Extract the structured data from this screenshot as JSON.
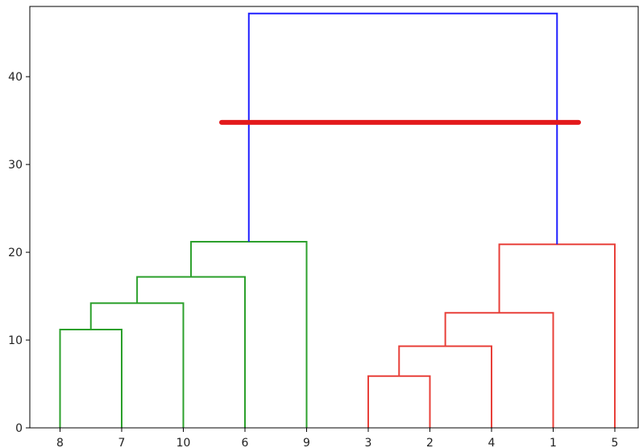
{
  "chart_data": {
    "type": "dendrogram",
    "title": "",
    "xlabel": "",
    "ylabel": "",
    "ylim": [
      0,
      48
    ],
    "yticks": [
      0,
      10,
      20,
      30,
      40
    ],
    "grid": false,
    "leaf_order": [
      "8",
      "7",
      "10",
      "6",
      "9",
      "3",
      "2",
      "4",
      "1",
      "5"
    ],
    "merges": [
      {
        "left": "8",
        "right": "7",
        "height": 11.2,
        "color": "#2ca02c"
      },
      {
        "left": "(8,7)",
        "right": "10",
        "height": 14.2,
        "color": "#2ca02c"
      },
      {
        "left": "(8,7,10)",
        "right": "6",
        "height": 17.2,
        "color": "#2ca02c"
      },
      {
        "left": "(8,7,10,6)",
        "right": "9",
        "height": 21.2,
        "color": "#2ca02c"
      },
      {
        "left": "3",
        "right": "2",
        "height": 5.9,
        "color": "#e8403a"
      },
      {
        "left": "(3,2)",
        "right": "4",
        "height": 9.3,
        "color": "#e8403a"
      },
      {
        "left": "(3,2,4)",
        "right": "1",
        "height": 13.1,
        "color": "#e8403a"
      },
      {
        "left": "(3,2,4,1)",
        "right": "5",
        "height": 20.9,
        "color": "#e8403a"
      },
      {
        "left": "(8,7,10,6,9)",
        "right": "(3,2,4,1,5)",
        "height": 47.2,
        "color": "#1f1fff"
      }
    ],
    "threshold_line": {
      "y": 34.8,
      "color": "#e31a1c"
    }
  }
}
